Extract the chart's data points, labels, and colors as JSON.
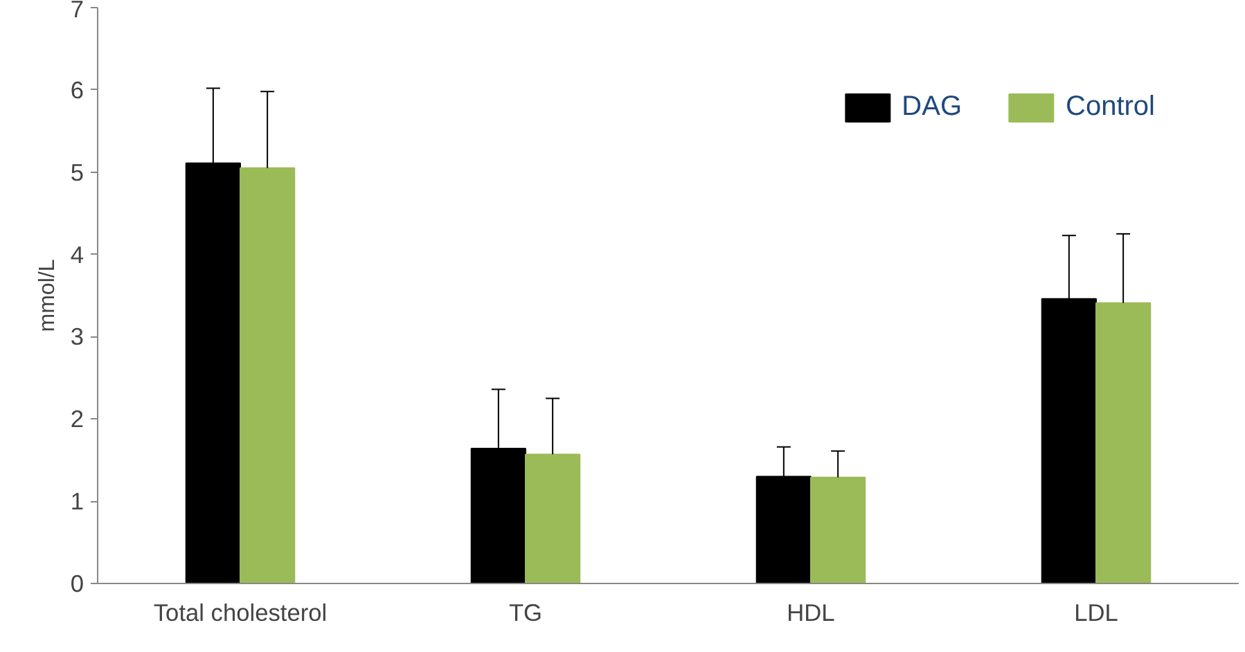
{
  "chart_data": {
    "type": "bar",
    "ylabel": "mmol/L",
    "categories": [
      "Total cholesterol",
      "TG",
      "HDL",
      "LDL"
    ],
    "series": [
      {
        "name": "DAG",
        "color": "#000000",
        "values": [
          5.11,
          1.64,
          1.3,
          3.46
        ],
        "errors": [
          [
            5.11,
            6.02
          ],
          [
            1.64,
            2.36
          ],
          [
            1.3,
            1.66
          ],
          [
            3.46,
            4.23
          ]
        ]
      },
      {
        "name": "Control",
        "color": "#9bbb59",
        "values": [
          5.05,
          1.57,
          1.29,
          3.41
        ],
        "errors": [
          [
            5.05,
            5.98
          ],
          [
            1.57,
            2.25
          ],
          [
            1.29,
            1.61
          ],
          [
            3.41,
            4.25
          ]
        ]
      }
    ],
    "ylim": [
      0,
      7
    ],
    "yticks": [
      0,
      1,
      2,
      3,
      4,
      5,
      6,
      7
    ],
    "grid": false,
    "legend": "top right"
  }
}
